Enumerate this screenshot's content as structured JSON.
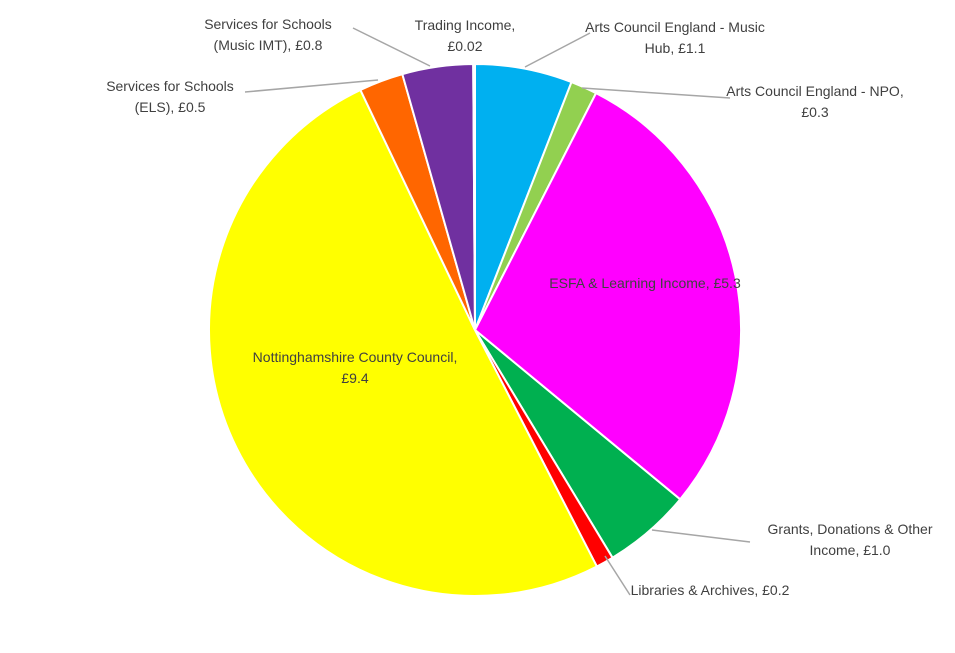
{
  "chart_data": {
    "type": "pie",
    "categories": [
      "Arts Council England - Music Hub",
      "Arts Council England - NPO",
      "ESFA & Learning Income",
      "Grants, Donations & Other Income",
      "Libraries & Archives",
      "Nottinghamshire County Council",
      "Services for Schools (ELS)",
      "Services for Schools (Music IMT)",
      "Trading Income"
    ],
    "values": [
      1.1,
      0.3,
      5.3,
      1.0,
      0.2,
      9.4,
      0.5,
      0.8,
      0.02
    ],
    "value_labels": [
      "£1.1",
      "£0.3",
      "£5.3",
      "£1.0",
      "£0.2",
      "£9.4",
      "£0.5",
      "£0.8",
      "£0.02"
    ],
    "colors": [
      "#00b0f0",
      "#92d050",
      "#ff00ff",
      "#00b050",
      "#ff0000",
      "#ffff00",
      "#ff6600",
      "#7030a0",
      "#ffc000"
    ]
  }
}
